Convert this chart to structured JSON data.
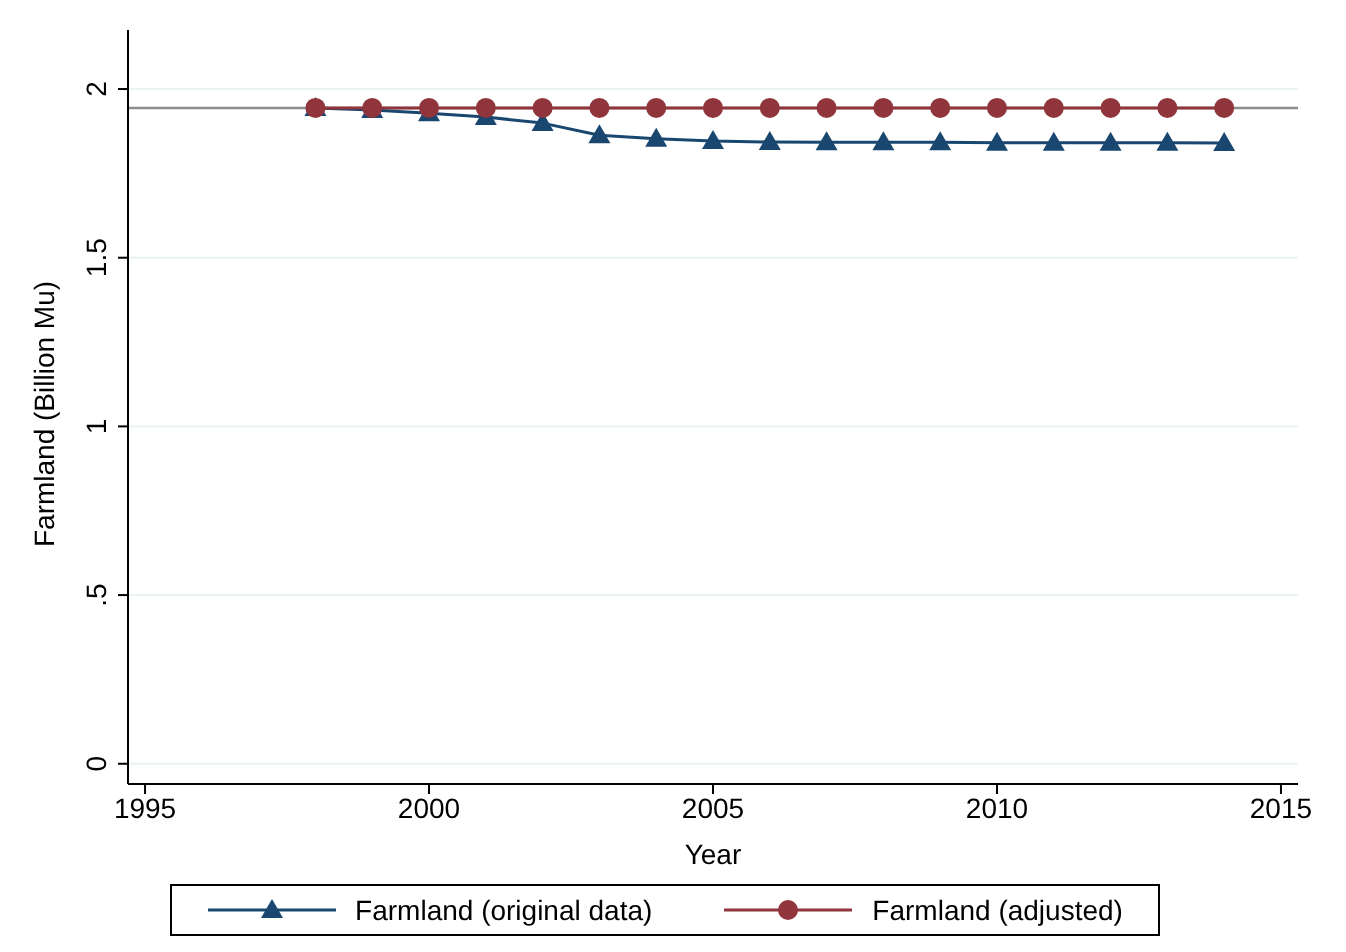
{
  "chart_data": {
    "type": "line",
    "xlabel": "Year",
    "ylabel": "Farmland (Billion Mu)",
    "x": [
      1998,
      1999,
      2000,
      2001,
      2002,
      2003,
      2004,
      2005,
      2006,
      2007,
      2008,
      2009,
      2010,
      2011,
      2012,
      2013,
      2014
    ],
    "series": [
      {
        "name": "Farmland (original data)",
        "color": "#1a476f",
        "marker": "triangle",
        "values": [
          1.944,
          1.938,
          1.928,
          1.917,
          1.899,
          1.863,
          1.853,
          1.846,
          1.843,
          1.842,
          1.842,
          1.842,
          1.841,
          1.841,
          1.841,
          1.841,
          1.84
        ]
      },
      {
        "name": "Farmland (adjusted)",
        "color": "#90353b",
        "marker": "circle",
        "values": [
          1.944,
          1.944,
          1.944,
          1.944,
          1.944,
          1.944,
          1.944,
          1.944,
          1.944,
          1.944,
          1.944,
          1.944,
          1.944,
          1.944,
          1.944,
          1.944,
          1.944
        ]
      }
    ],
    "xlim": [
      1994.7,
      2015.3
    ],
    "xticks": [
      1995,
      2000,
      2005,
      2010,
      2015
    ],
    "ylim": [
      -0.06,
      2.175
    ],
    "yticks": [
      0,
      {
        "value": 0.5,
        "label": ".5"
      },
      1,
      1.5,
      2
    ],
    "ref_lines": [
      {
        "axis": "y",
        "value": 1.944,
        "color": "#8c8c8c"
      }
    ],
    "grid": "y",
    "legend": "bottom"
  }
}
